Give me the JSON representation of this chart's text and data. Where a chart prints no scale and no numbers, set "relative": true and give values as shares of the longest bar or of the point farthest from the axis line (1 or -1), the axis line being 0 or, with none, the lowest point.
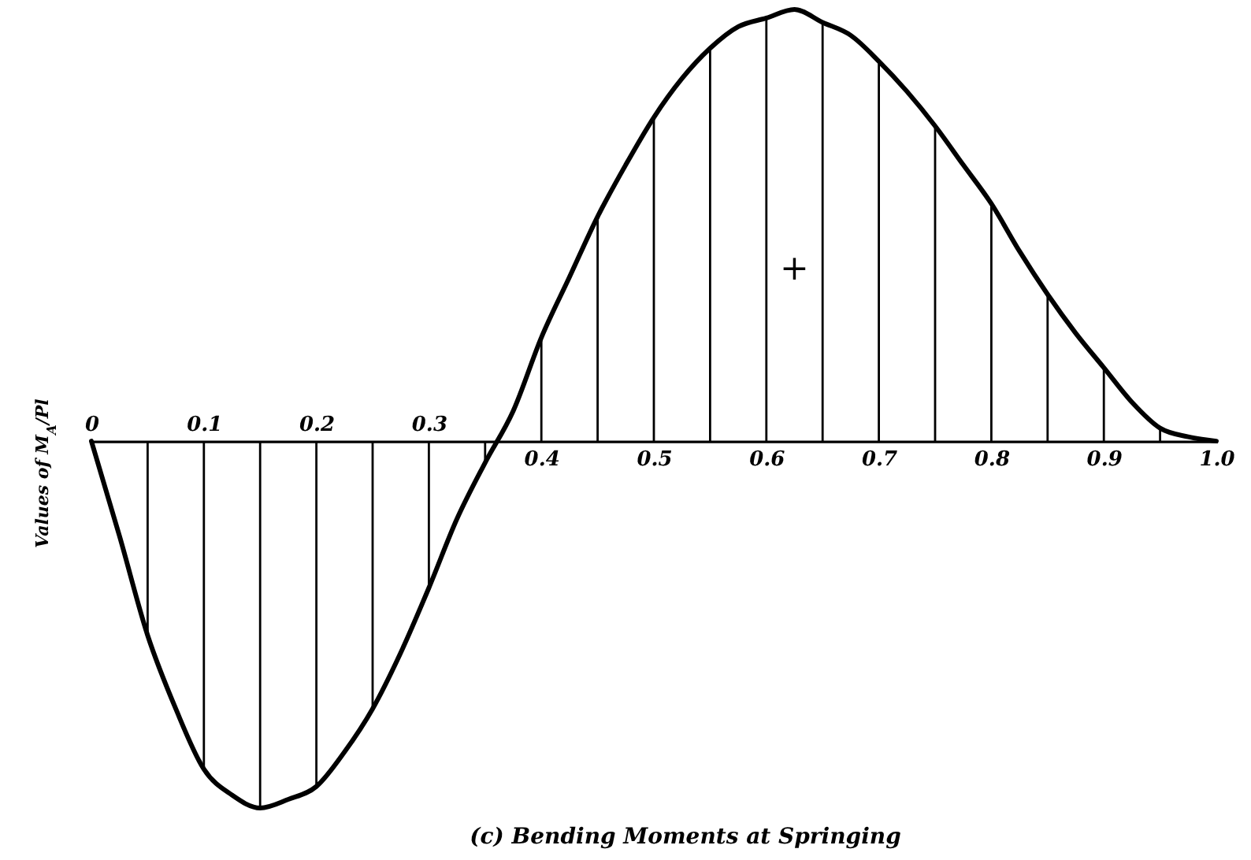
{
  "chart_data": {
    "type": "line",
    "title": "(c) Bending Moments at Springing",
    "ylabel": "Values of M$_{A}$/Pl",
    "relative": true,
    "xlim": [
      0,
      1
    ],
    "xticks": [
      0.4,
      0.5,
      0.6,
      0.7,
      0.8,
      0.9,
      {
        "value": 1,
        "label": "1.0"
      }
    ],
    "x2lim": [
      0,
      1
    ],
    "x2ticks": [
      0,
      0.1,
      0.2,
      0.3
    ],
    "annotations": [
      "+"
    ],
    "series": [
      {
        "color": "#000000",
        "x": [
          0,
          0.025,
          0.05,
          0.075,
          0.1,
          0.125,
          0.15,
          0.175,
          0.2,
          0.225,
          0.25,
          0.275,
          0.3,
          0.325,
          0.35,
          0.375,
          0.4,
          0.425,
          0.45,
          0.475,
          0.5,
          0.525,
          0.55,
          0.575,
          0.6,
          0.625,
          0.65,
          0.675,
          0.7,
          0.725,
          0.75,
          0.775,
          0.8,
          0.825,
          0.85,
          0.875,
          0.9,
          0.925,
          0.95,
          0.975,
          1
        ],
        "values": [
          0,
          -0.22,
          -0.45,
          -0.62,
          -0.76,
          -0.82,
          -0.85,
          -0.83,
          -0.8,
          -0.72,
          -0.62,
          -0.49,
          -0.34,
          -0.18,
          -0.05,
          0.07,
          0.24,
          0.38,
          0.52,
          0.64,
          0.75,
          0.84,
          0.91,
          0.96,
          0.98,
          1,
          0.97,
          0.94,
          0.88,
          0.81,
          0.73,
          0.64,
          0.55,
          0.44,
          0.34,
          0.25,
          0.17,
          0.09,
          0.03,
          0.01,
          0
        ]
      },
      {
        "type": "bar",
        "color": "#000000",
        "x": [
          0.05,
          0.1,
          0.15,
          0.2,
          0.25,
          0.3,
          0.35,
          0.4,
          0.45,
          0.5,
          0.55,
          0.6,
          0.65,
          0.7,
          0.75,
          0.8,
          0.85,
          0.9,
          0.95
        ],
        "values": [
          -0.45,
          -0.76,
          -0.85,
          -0.8,
          -0.62,
          -0.34,
          -0.05,
          0.24,
          0.52,
          0.75,
          0.91,
          0.98,
          0.97,
          0.88,
          0.73,
          0.55,
          0.34,
          0.17,
          0.03
        ]
      }
    ]
  }
}
